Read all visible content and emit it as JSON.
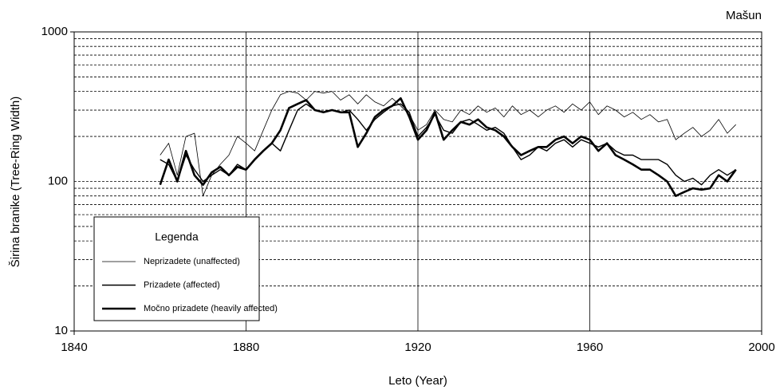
{
  "chart_data": {
    "type": "line",
    "title": "Mašun",
    "x_label": "Leto (Year)",
    "y_label": "Širina branike (Tree-Ring Width)",
    "legend_title": "Legenda",
    "legend": "lower left",
    "log_y": true,
    "xgrid": true,
    "ygrid": true,
    "xlim": [
      1840,
      2000
    ],
    "ylim": [
      10,
      1000
    ],
    "xticks": [
      1840,
      1880,
      1920,
      1960,
      2000
    ],
    "yticks": [
      10,
      100,
      1000
    ],
    "y_minor_ticks": [
      20,
      30,
      40,
      50,
      60,
      70,
      80,
      90,
      200,
      300,
      400,
      500,
      600,
      700,
      800,
      900
    ],
    "x": [
      1860,
      1862,
      1864,
      1866,
      1868,
      1870,
      1872,
      1874,
      1876,
      1878,
      1880,
      1882,
      1884,
      1886,
      1888,
      1890,
      1892,
      1894,
      1896,
      1898,
      1900,
      1902,
      1904,
      1906,
      1908,
      1910,
      1912,
      1914,
      1916,
      1918,
      1920,
      1922,
      1924,
      1926,
      1928,
      1930,
      1932,
      1934,
      1936,
      1938,
      1940,
      1942,
      1944,
      1946,
      1948,
      1950,
      1952,
      1954,
      1956,
      1958,
      1960,
      1962,
      1964,
      1966,
      1968,
      1970,
      1972,
      1974,
      1976,
      1978,
      1980,
      1982,
      1984,
      1986,
      1988,
      1990,
      1992,
      1994
    ],
    "series": [
      {
        "name": "Neprizadete (unaffected)",
        "color": "#000000",
        "width": 0.8,
        "values": [
          150,
          180,
          110,
          200,
          210,
          80,
          110,
          130,
          150,
          200,
          180,
          160,
          220,
          300,
          380,
          400,
          390,
          350,
          400,
          390,
          400,
          350,
          380,
          330,
          380,
          340,
          320,
          360,
          320,
          280,
          220,
          240,
          300,
          260,
          250,
          300,
          280,
          320,
          290,
          310,
          270,
          320,
          280,
          300,
          270,
          300,
          320,
          290,
          330,
          300,
          340,
          280,
          320,
          300,
          270,
          290,
          260,
          280,
          250,
          260,
          190,
          210,
          230,
          200,
          220,
          260,
          210,
          240
        ]
      },
      {
        "name": "Prizadete (affected)",
        "color": "#000000",
        "width": 1.4,
        "values": [
          140,
          130,
          100,
          150,
          120,
          100,
          110,
          120,
          110,
          130,
          120,
          140,
          160,
          180,
          160,
          220,
          300,
          330,
          300,
          290,
          300,
          290,
          300,
          260,
          220,
          260,
          290,
          320,
          330,
          290,
          200,
          230,
          280,
          220,
          210,
          250,
          260,
          240,
          220,
          230,
          210,
          170,
          140,
          150,
          170,
          160,
          180,
          190,
          170,
          190,
          180,
          170,
          180,
          160,
          150,
          150,
          140,
          140,
          140,
          130,
          110,
          100,
          105,
          95,
          110,
          120,
          110,
          120
        ]
      },
      {
        "name": "Močno prizadete (heavily affected)",
        "color": "#000000",
        "width": 2.6,
        "values": [
          95,
          140,
          100,
          160,
          110,
          95,
          115,
          125,
          110,
          125,
          120,
          140,
          160,
          180,
          220,
          310,
          330,
          350,
          300,
          290,
          300,
          290,
          290,
          170,
          210,
          270,
          300,
          320,
          360,
          270,
          190,
          220,
          290,
          190,
          220,
          250,
          240,
          260,
          230,
          220,
          200,
          170,
          150,
          160,
          170,
          170,
          190,
          200,
          180,
          200,
          190,
          160,
          180,
          150,
          140,
          130,
          120,
          120,
          110,
          100,
          80,
          85,
          90,
          88,
          90,
          110,
          100,
          120
        ]
      }
    ]
  }
}
